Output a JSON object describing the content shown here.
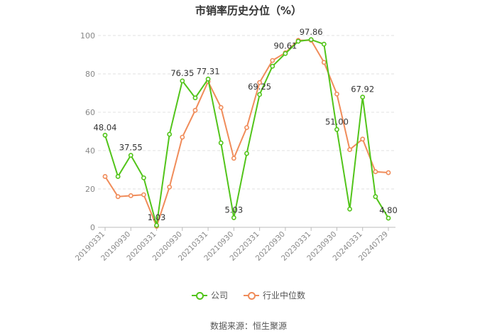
{
  "chart_data": {
    "type": "line",
    "title": "市销率历史分位（%）",
    "x": [
      "20190331",
      "",
      "20190930",
      "",
      "20200331",
      "",
      "20200930",
      "",
      "20210331",
      "",
      "20210930",
      "",
      "20220331",
      "",
      "20220930",
      "",
      "20230331",
      "",
      "20230930",
      "",
      "20240331",
      "",
      "20240729"
    ],
    "x_tick_labels": [
      "20190331",
      "20190930",
      "20200331",
      "20200930",
      "20210331",
      "20210930",
      "20220331",
      "20220930",
      "20230331",
      "20230930",
      "20240331",
      "20240729"
    ],
    "ylim": [
      0,
      100
    ],
    "y_ticks": [
      "0",
      "20",
      "40",
      "60",
      "80",
      "100"
    ],
    "grid": "horizontal dashed",
    "legend": "bottom",
    "series": [
      {
        "name": "公司",
        "color": "#52c41a",
        "values": [
          48.04,
          26.5,
          37.55,
          25.8,
          1.03,
          48.5,
          76.35,
          67.5,
          77.31,
          44,
          5.03,
          38.5,
          69.25,
          84,
          90.61,
          97,
          97.86,
          95.5,
          51.0,
          9.5,
          67.92,
          16,
          4.8
        ],
        "labels": {
          "0": "48.04",
          "2": "37.55",
          "4": "1.03",
          "6": "76.35",
          "8": "77.31",
          "10": "5.03",
          "12": "69.25",
          "14": "90.61",
          "16": "97.86",
          "18": "51.00",
          "20": "67.92",
          "22": "4.80"
        }
      },
      {
        "name": "行业中位数",
        "color": "#f08c5a",
        "values": [
          26.5,
          16,
          16.5,
          17,
          0.5,
          21,
          47,
          61,
          76,
          62.5,
          36,
          52,
          75.5,
          87,
          91,
          97.5,
          97.5,
          86,
          69.5,
          40.5,
          46,
          29,
          28.5
        ]
      }
    ]
  },
  "source": "数据来源：恒生聚源"
}
